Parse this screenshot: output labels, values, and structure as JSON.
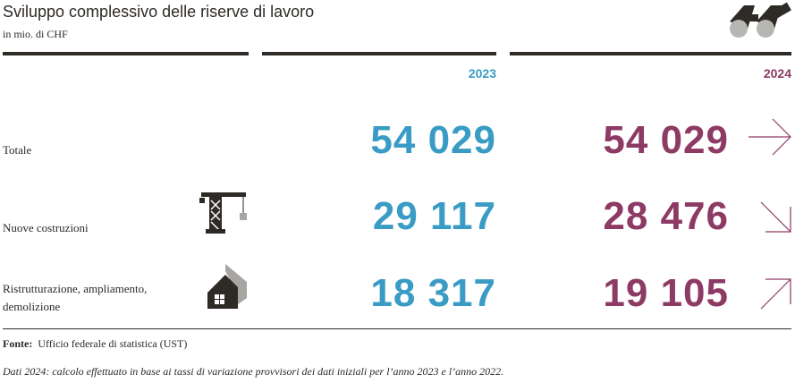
{
  "header": {
    "title": "Sviluppo complessivo delle riserve di lavoro",
    "subtitle": "in mio. di CHF"
  },
  "icons": {
    "header": "binoculars-icon",
    "nuove": "crane-icon",
    "ristrutturazione": "house-icon",
    "totale_trend": "arrow-right-icon",
    "nuove_trend": "arrow-down-right-icon",
    "ristrutturazione_trend": "arrow-up-right-icon"
  },
  "colors": {
    "year_2023": "#3a9cc4",
    "year_2024": "#8d3a64",
    "text": "#2e2a26"
  },
  "columns": {
    "y2023": "2023",
    "y2024": "2024"
  },
  "rows": [
    {
      "label": "Totale",
      "v2023": "54 029",
      "v2024": "54 029",
      "trend": "stabile"
    },
    {
      "label": "Nuove costruzioni",
      "v2023": "29 117",
      "v2024": "28 476",
      "trend": "in calo"
    },
    {
      "label_line1": "Ristrutturazione, ampliamento,",
      "label_line2": "demolizione",
      "v2023": "18 317",
      "v2024": "19 105",
      "trend": "in aumento"
    }
  ],
  "footer": {
    "source_label": "Fonte:",
    "source_text": "Ufficio federale di statistica (UST)",
    "note": "Dati 2024: calcolo effettuato in base ai tassi di variazione provvisori dei dati iniziali per l’anno 2023 e l’anno 2022."
  }
}
